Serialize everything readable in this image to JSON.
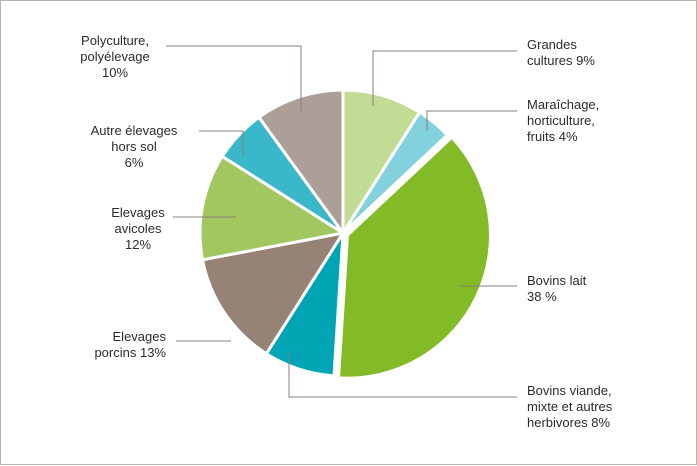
{
  "chart_data": {
    "type": "pie",
    "title": "",
    "slices": [
      {
        "key": "grandes",
        "label": [
          "Grandes",
          "cultures 9%"
        ],
        "value": 9,
        "color": "#c2dc95"
      },
      {
        "key": "maraichage",
        "label": [
          "Maraîchage,",
          "horticulture,",
          "fruits 4%"
        ],
        "value": 4,
        "color": "#82d1dc"
      },
      {
        "key": "bovins-lait",
        "label": [
          "Bovins lait",
          "38 %"
        ],
        "value": 38,
        "color": "#83bb26"
      },
      {
        "key": "bovins-viande",
        "label": [
          "Bovins viande,",
          "mixte et autres",
          "herbivores 8%"
        ],
        "value": 8,
        "color": "#00a5b5"
      },
      {
        "key": "porcins",
        "label": [
          "Elevages",
          "porcins 13%"
        ],
        "value": 13,
        "color": "#978276"
      },
      {
        "key": "avicoles",
        "label": [
          "Elevages",
          "avicoles",
          "12%"
        ],
        "value": 12,
        "color": "#a2c761"
      },
      {
        "key": "hors-sol",
        "label": [
          "Autre élevages",
          "hors sol",
          "6%"
        ],
        "value": 6,
        "color": "#3ab8c9"
      },
      {
        "key": "polyculture",
        "label": [
          "Polyculture,",
          "polyélevage",
          "10%"
        ],
        "value": 10,
        "color": "#ac9f98"
      }
    ]
  }
}
